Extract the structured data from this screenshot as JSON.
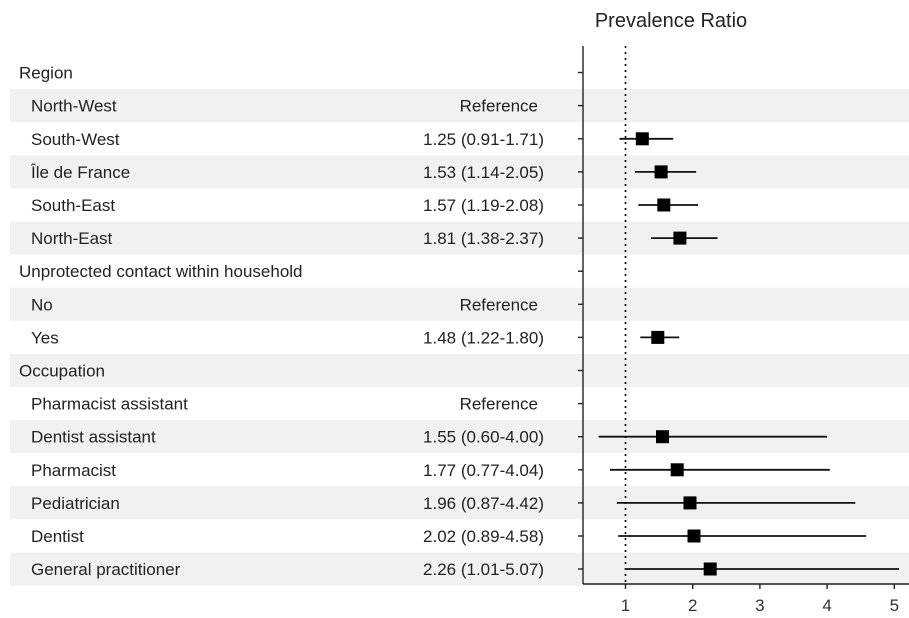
{
  "chart_data": {
    "type": "forest",
    "title": "Prevalence Ratio",
    "x_ticks": [
      1,
      2,
      3,
      4,
      5
    ],
    "xlim": [
      0.4,
      5.1
    ],
    "reference_line": 1,
    "rows": [
      {
        "label": "Region",
        "header": true
      },
      {
        "label": "North-West",
        "text": "Reference"
      },
      {
        "label": "South-West",
        "text": "1.25 (0.91-1.71)",
        "est": 1.25,
        "lo": 0.91,
        "hi": 1.71
      },
      {
        "label": "Île de France",
        "text": "1.53 (1.14-2.05)",
        "est": 1.53,
        "lo": 1.14,
        "hi": 2.05
      },
      {
        "label": "South-East",
        "text": "1.57 (1.19-2.08)",
        "est": 1.57,
        "lo": 1.19,
        "hi": 2.08
      },
      {
        "label": "North-East",
        "text": "1.81 (1.38-2.37)",
        "est": 1.81,
        "lo": 1.38,
        "hi": 2.37
      },
      {
        "label": "Unprotected contact within household",
        "header": true
      },
      {
        "label": "No",
        "text": "Reference"
      },
      {
        "label": "Yes",
        "text": "1.48 (1.22-1.80)",
        "est": 1.48,
        "lo": 1.22,
        "hi": 1.8
      },
      {
        "label": "Occupation",
        "header": true
      },
      {
        "label": "Pharmacist assistant",
        "text": "Reference"
      },
      {
        "label": "Dentist assistant",
        "text": "1.55 (0.60-4.00)",
        "est": 1.55,
        "lo": 0.6,
        "hi": 4.0
      },
      {
        "label": "Pharmacist",
        "text": "1.77 (0.77-4.04)",
        "est": 1.77,
        "lo": 0.77,
        "hi": 4.04
      },
      {
        "label": "Pediatrician",
        "text": "1.96 (0.87-4.42)",
        "est": 1.96,
        "lo": 0.87,
        "hi": 4.42
      },
      {
        "label": "Dentist",
        "text": "2.02 (0.89-4.58)",
        "est": 2.02,
        "lo": 0.89,
        "hi": 4.58
      },
      {
        "label": "General practitioner",
        "text": "2.26 (1.01-5.07)",
        "est": 2.26,
        "lo": 1.01,
        "hi": 5.07
      }
    ]
  }
}
